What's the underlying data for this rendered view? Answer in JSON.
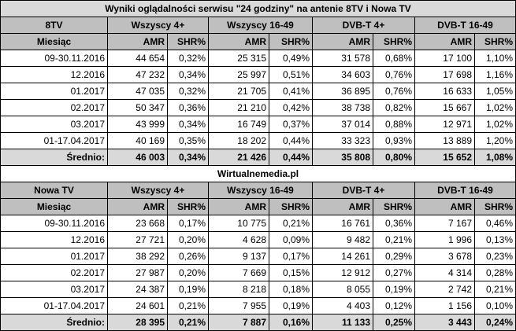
{
  "title": "Wyniki oglądalności serwisu \"24 godziny\" na antenie 8TV i Nowa TV",
  "middle_label": "Wirtualnemedia.pl",
  "group_headers": [
    "Wszyscy 4+",
    "Wszyscy 16-49",
    "DVB-T 4+",
    "DVB-T 16-49"
  ],
  "month_label": "Miesiąc",
  "amr_label": "AMR",
  "shr_label": "SHR%",
  "channels": [
    {
      "name": "8TV",
      "rows": [
        {
          "month": "09-30.11.2016",
          "vals": [
            "44 654",
            "0,32%",
            "25 315",
            "0,49%",
            "31 578",
            "0,68%",
            "17 100",
            "1,10%"
          ]
        },
        {
          "month": "12.2016",
          "vals": [
            "47 232",
            "0,34%",
            "25 997",
            "0,51%",
            "34 603",
            "0,76%",
            "17 698",
            "1,16%"
          ]
        },
        {
          "month": "01.2017",
          "vals": [
            "47 035",
            "0,32%",
            "21 705",
            "0,41%",
            "36 895",
            "0,76%",
            "16 633",
            "1,05%"
          ]
        },
        {
          "month": "02.2017",
          "vals": [
            "50 347",
            "0,36%",
            "21 210",
            "0,42%",
            "38 738",
            "0,82%",
            "15 667",
            "1,02%"
          ]
        },
        {
          "month": "03.2017",
          "vals": [
            "43 999",
            "0,34%",
            "16 749",
            "0,37%",
            "37 014",
            "0,88%",
            "12 971",
            "1,02%"
          ]
        },
        {
          "month": "01-17.04.2017",
          "vals": [
            "40 169",
            "0,35%",
            "18 202",
            "0,44%",
            "33 323",
            "0,93%",
            "13 889",
            "1,20%"
          ]
        }
      ],
      "avg_label": "Średnio:",
      "avg": [
        "46 003",
        "0,34%",
        "21 426",
        "0,44%",
        "35 808",
        "0,80%",
        "15 652",
        "1,08%"
      ]
    },
    {
      "name": "Nowa TV",
      "rows": [
        {
          "month": "09-30.11.2016",
          "vals": [
            "23 668",
            "0,17%",
            "10 775",
            "0,21%",
            "16 761",
            "0,36%",
            "7 167",
            "0,46%"
          ]
        },
        {
          "month": "12.2016",
          "vals": [
            "27 721",
            "0,20%",
            "4 628",
            "0,09%",
            "9 482",
            "0,21%",
            "1 996",
            "0,13%"
          ]
        },
        {
          "month": "01.2017",
          "vals": [
            "38 292",
            "0,26%",
            "9 137",
            "0,17%",
            "14 261",
            "0,29%",
            "3 678",
            "0,23%"
          ]
        },
        {
          "month": "02.2017",
          "vals": [
            "27 987",
            "0,20%",
            "7 669",
            "0,15%",
            "12 912",
            "0,27%",
            "4 314",
            "0,28%"
          ]
        },
        {
          "month": "03.2017",
          "vals": [
            "24 387",
            "0,19%",
            "8 218",
            "0,18%",
            "8 055",
            "0,19%",
            "2 742",
            "0,21%"
          ]
        },
        {
          "month": "01-17.04.2017",
          "vals": [
            "24 601",
            "0,21%",
            "7 955",
            "0,19%",
            "4 403",
            "0,12%",
            "1 156",
            "0,10%"
          ]
        }
      ],
      "avg_label": "Średnio:",
      "avg": [
        "28 395",
        "0,21%",
        "7 887",
        "0,16%",
        "11 133",
        "0,25%",
        "3 443",
        "0,24%"
      ]
    }
  ]
}
